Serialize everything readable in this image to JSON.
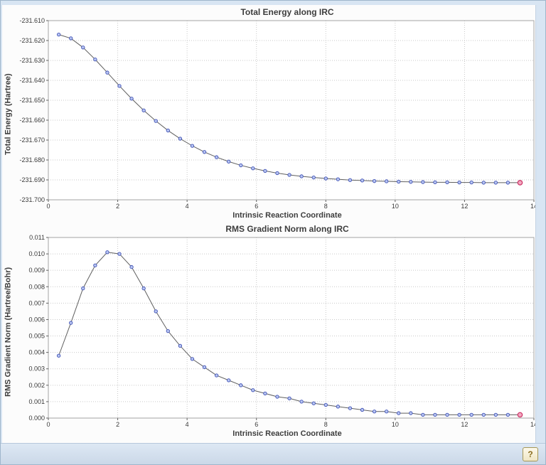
{
  "ui": {
    "window_background": "#d8e5f3",
    "content_background": "#fcfcfc",
    "grid_color": "#c9c9c9",
    "axis_color": "#a3a3a3"
  },
  "statusbar": {
    "help_button_glyph": "?"
  },
  "chart_data": [
    {
      "type": "line",
      "title": "Total Energy along IRC",
      "xlabel": "Intrinsic Reaction Coordinate",
      "ylabel": "Total Energy (Hartree)",
      "xlim": [
        0,
        14
      ],
      "ylim": [
        -231.7,
        -231.61
      ],
      "grid": true,
      "xticks": [
        0,
        2,
        4,
        6,
        8,
        10,
        12,
        14
      ],
      "xtick_labels": [
        "0",
        "2",
        "4",
        "6",
        "8",
        "10",
        "12",
        "14"
      ],
      "yticks": [
        -231.7,
        -231.69,
        -231.68,
        -231.67,
        -231.66,
        -231.65,
        -231.64,
        -231.63,
        -231.62,
        -231.61
      ],
      "ytick_labels": [
        "-231.700",
        "-231.690",
        "-231.680",
        "-231.670",
        "-231.660",
        "-231.650",
        "-231.640",
        "-231.630",
        "-231.620",
        "-231.610"
      ],
      "x": [
        0.3,
        0.65,
        1.0,
        1.35,
        1.7,
        2.05,
        2.4,
        2.75,
        3.1,
        3.45,
        3.8,
        4.15,
        4.5,
        4.85,
        5.2,
        5.55,
        5.9,
        6.25,
        6.6,
        6.95,
        7.3,
        7.65,
        8.0,
        8.35,
        8.7,
        9.05,
        9.4,
        9.75,
        10.1,
        10.45,
        10.8,
        11.15,
        11.5,
        11.85,
        12.2,
        12.55,
        12.9,
        13.25,
        13.6
      ],
      "y": [
        -231.617,
        -231.6189,
        -231.6235,
        -231.6295,
        -231.6361,
        -231.6428,
        -231.6492,
        -231.6551,
        -231.6604,
        -231.6652,
        -231.6693,
        -231.6729,
        -231.676,
        -231.6786,
        -231.6808,
        -231.6827,
        -231.6842,
        -231.6855,
        -231.6866,
        -231.6875,
        -231.6882,
        -231.6888,
        -231.6893,
        -231.6897,
        -231.6901,
        -231.6903,
        -231.6906,
        -231.6907,
        -231.6909,
        -231.691,
        -231.6911,
        -231.6912,
        -231.6912,
        -231.6913,
        -231.6913,
        -231.6914,
        -231.6914,
        -231.6914,
        -231.6914
      ],
      "marker": "circle",
      "line_color": "#5f5f5f",
      "marker_fill": "#b9c6f2",
      "marker_stroke": "#3f51b5",
      "final_marker_fill": "#f2a8c0",
      "final_marker_stroke": "#cc3366",
      "legend": "none"
    },
    {
      "type": "line",
      "title": "RMS Gradient Norm along IRC",
      "xlabel": "Intrinsic Reaction Coordinate",
      "ylabel": "RMS Gradient Norm (Hartree/Bohr)",
      "xlim": [
        0,
        14
      ],
      "ylim": [
        0.0,
        0.011
      ],
      "grid": true,
      "xticks": [
        0,
        2,
        4,
        6,
        8,
        10,
        12,
        14
      ],
      "xtick_labels": [
        "0",
        "2",
        "4",
        "6",
        "8",
        "10",
        "12",
        "14"
      ],
      "yticks": [
        0.0,
        0.001,
        0.002,
        0.003,
        0.004,
        0.005,
        0.006,
        0.007,
        0.008,
        0.009,
        0.01,
        0.011
      ],
      "ytick_labels": [
        "0.000",
        "0.001",
        "0.002",
        "0.003",
        "0.004",
        "0.005",
        "0.006",
        "0.007",
        "0.008",
        "0.009",
        "0.010",
        "0.011"
      ],
      "x": [
        0.3,
        0.65,
        1.0,
        1.35,
        1.7,
        2.05,
        2.4,
        2.75,
        3.1,
        3.45,
        3.8,
        4.15,
        4.5,
        4.85,
        5.2,
        5.55,
        5.9,
        6.25,
        6.6,
        6.95,
        7.3,
        7.65,
        8.0,
        8.35,
        8.7,
        9.05,
        9.4,
        9.75,
        10.1,
        10.45,
        10.8,
        11.15,
        11.5,
        11.85,
        12.2,
        12.55,
        12.9,
        13.25,
        13.6
      ],
      "y": [
        0.0038,
        0.0058,
        0.0079,
        0.0093,
        0.0101,
        0.01,
        0.0092,
        0.0079,
        0.0065,
        0.0053,
        0.0044,
        0.0036,
        0.0031,
        0.0026,
        0.0023,
        0.002,
        0.0017,
        0.0015,
        0.0013,
        0.0012,
        0.001,
        0.0009,
        0.0008,
        0.0007,
        0.0006,
        0.0005,
        0.0004,
        0.0004,
        0.0003,
        0.0003,
        0.0002,
        0.0002,
        0.0002,
        0.0002,
        0.0002,
        0.0002,
        0.0002,
        0.0002,
        0.0002
      ],
      "marker": "circle",
      "line_color": "#5f5f5f",
      "marker_fill": "#b9c6f2",
      "marker_stroke": "#3f51b5",
      "final_marker_fill": "#f2a8c0",
      "final_marker_stroke": "#cc3366",
      "legend": "none"
    }
  ]
}
